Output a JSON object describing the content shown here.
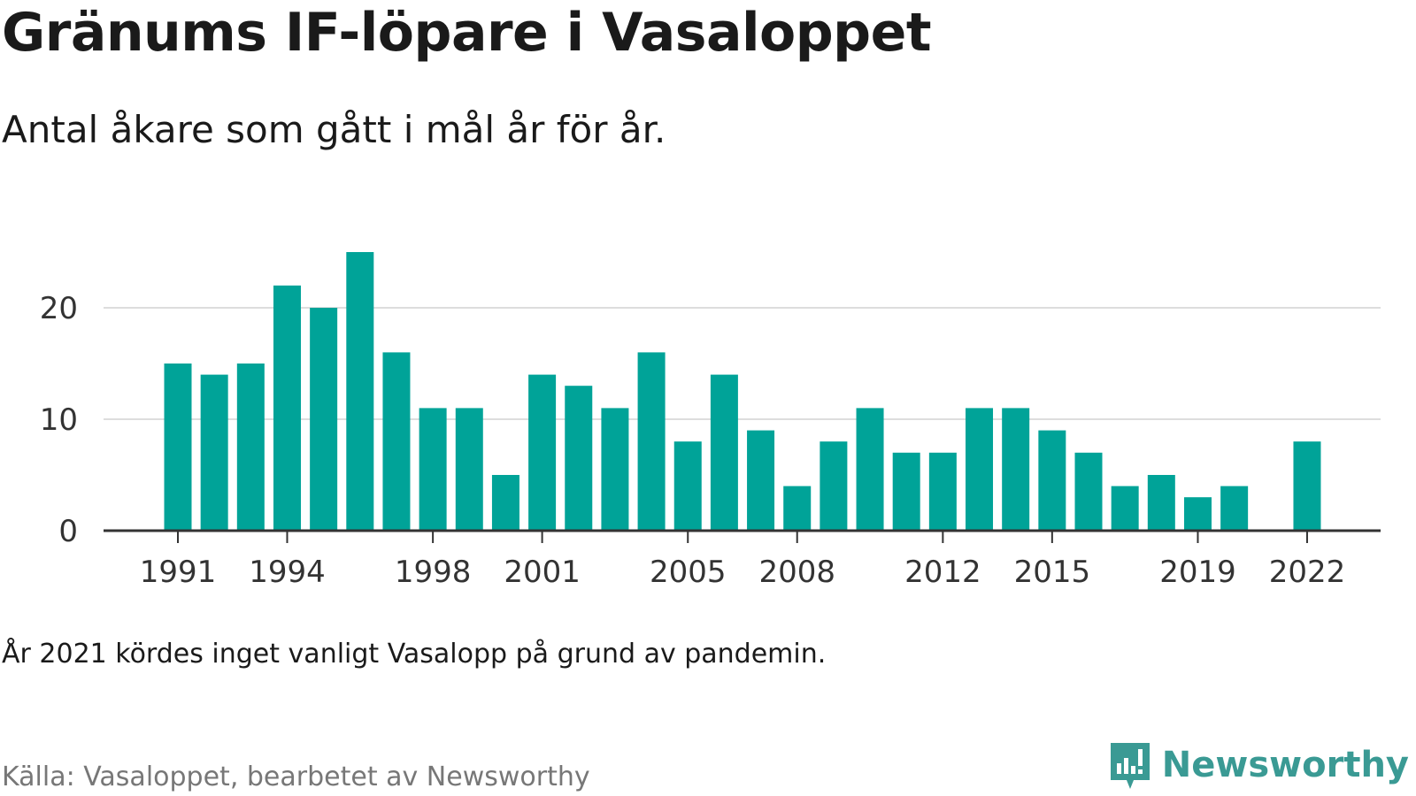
{
  "header": {
    "title": "Gränums IF-löpare i Vasaloppet",
    "subtitle": "Antal åkare som gått i mål år för år."
  },
  "footer": {
    "note": "År 2021 kördes inget vanligt Vasalopp på grund av pandemin.",
    "source": "Källa: Vasaloppet, bearbetet av Newsworthy",
    "brand": "Newsworthy",
    "brand_icon": "newsworthy-logo-icon"
  },
  "colors": {
    "bar": "#00a398",
    "grid": "#dddddd",
    "axis": "#333333",
    "brand": "#3a9a94"
  },
  "chart_data": {
    "type": "bar",
    "title": "Gränums IF-löpare i Vasaloppet",
    "subtitle": "Antal åkare som gått i mål år för år.",
    "xlabel": "",
    "ylabel": "",
    "categories": [
      "1991",
      "1992",
      "1993",
      "1994",
      "1995",
      "1996",
      "1997",
      "1998",
      "1999",
      "2000",
      "2001",
      "2002",
      "2003",
      "2004",
      "2005",
      "2006",
      "2007",
      "2008",
      "2009",
      "2010",
      "2011",
      "2012",
      "2013",
      "2014",
      "2015",
      "2016",
      "2017",
      "2018",
      "2019",
      "2020",
      "2021",
      "2022"
    ],
    "values": [
      15,
      14,
      15,
      22,
      20,
      25,
      16,
      11,
      11,
      5,
      14,
      13,
      11,
      16,
      8,
      14,
      9,
      4,
      8,
      11,
      7,
      7,
      11,
      11,
      9,
      7,
      4,
      5,
      3,
      4,
      null,
      8
    ],
    "x_tick_labels": [
      "1991",
      "1994",
      "1998",
      "2001",
      "2005",
      "2008",
      "2012",
      "2015",
      "2019",
      "2022"
    ],
    "y_ticks": [
      0,
      10,
      20
    ],
    "ylim": [
      0,
      26
    ],
    "grid": true,
    "legend": "none",
    "bar_color": "#00a398"
  }
}
